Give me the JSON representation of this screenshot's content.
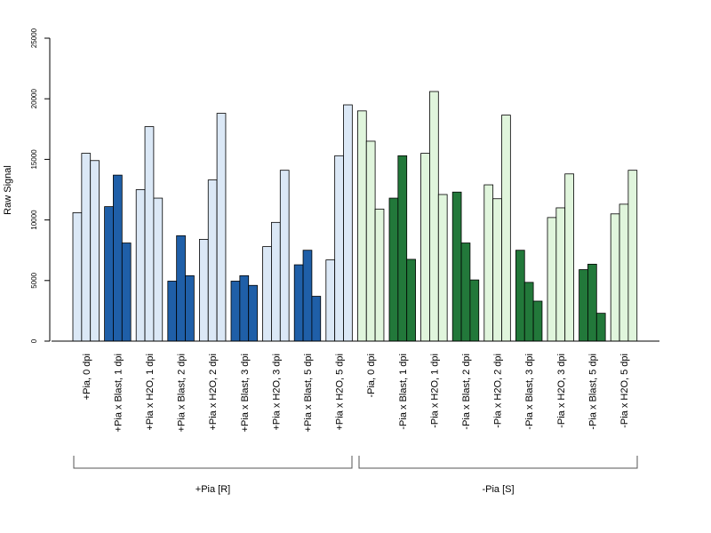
{
  "chart_data": {
    "type": "bar",
    "title": "",
    "ylabel": "Raw Signal",
    "xlabel": "",
    "ylim": [
      0,
      25000
    ],
    "yticks": [
      0,
      5000,
      10000,
      15000,
      20000,
      25000
    ],
    "grid": false,
    "legend": "none",
    "bars_per_group": 3,
    "categories": [
      "+Pia, 0 dpi",
      "+Pia x Blast, 1 dpi",
      "+Pia x H2O, 1 dpi",
      "+Pia x Blast, 2 dpi",
      "+Pia x H2O, 2 dpi",
      "+Pia x Blast, 3 dpi",
      "+Pia x H2O, 3 dpi",
      "+Pia x Blast, 5 dpi",
      "+Pia x H2O, 5 dpi",
      "-Pia, 0 dpi",
      "-Pia x Blast, 1 dpi",
      "-Pia x H2O, 1 dpi",
      "-Pia x Blast, 2 dpi",
      "-Pia x H2O, 2 dpi",
      "-Pia x Blast, 3 dpi",
      "-Pia x H2O, 3 dpi",
      "-Pia x Blast, 5 dpi",
      "-Pia x H2O, 5 dpi"
    ],
    "values": [
      [
        10600,
        15500,
        14900
      ],
      [
        11100,
        13700,
        8100
      ],
      [
        12500,
        17700,
        11800
      ],
      [
        4950,
        8700,
        5400
      ],
      [
        8400,
        13300,
        18800
      ],
      [
        4950,
        5400,
        4600
      ],
      [
        7800,
        9800,
        14100
      ],
      [
        6300,
        7500,
        3700
      ],
      [
        6700,
        15300,
        19500
      ],
      [
        19000,
        16500,
        10900
      ],
      [
        11800,
        15300,
        6750
      ],
      [
        15500,
        20600,
        12100
      ],
      [
        12300,
        8100,
        5050
      ],
      [
        12900,
        11750,
        18650
      ],
      [
        7500,
        4850,
        3300
      ],
      [
        10200,
        11000,
        13800
      ],
      [
        5900,
        6350,
        2300
      ],
      [
        10500,
        11300,
        14100
      ]
    ],
    "colors": [
      "#dbe8f6",
      "#1f5fa8",
      "#dbe8f6",
      "#1f5fa8",
      "#dbe8f6",
      "#1f5fa8",
      "#dbe8f6",
      "#1f5fa8",
      "#dbe8f6",
      "#e0f5dc",
      "#22783a",
      "#e0f5dc",
      "#22783a",
      "#e0f5dc",
      "#22783a",
      "#e0f5dc",
      "#22783a",
      "#e0f5dc"
    ],
    "supergroups": [
      {
        "label": "+Pia [R]",
        "from": 0,
        "to": 8
      },
      {
        "label": "-Pia [S]",
        "from": 9,
        "to": 17
      }
    ]
  }
}
